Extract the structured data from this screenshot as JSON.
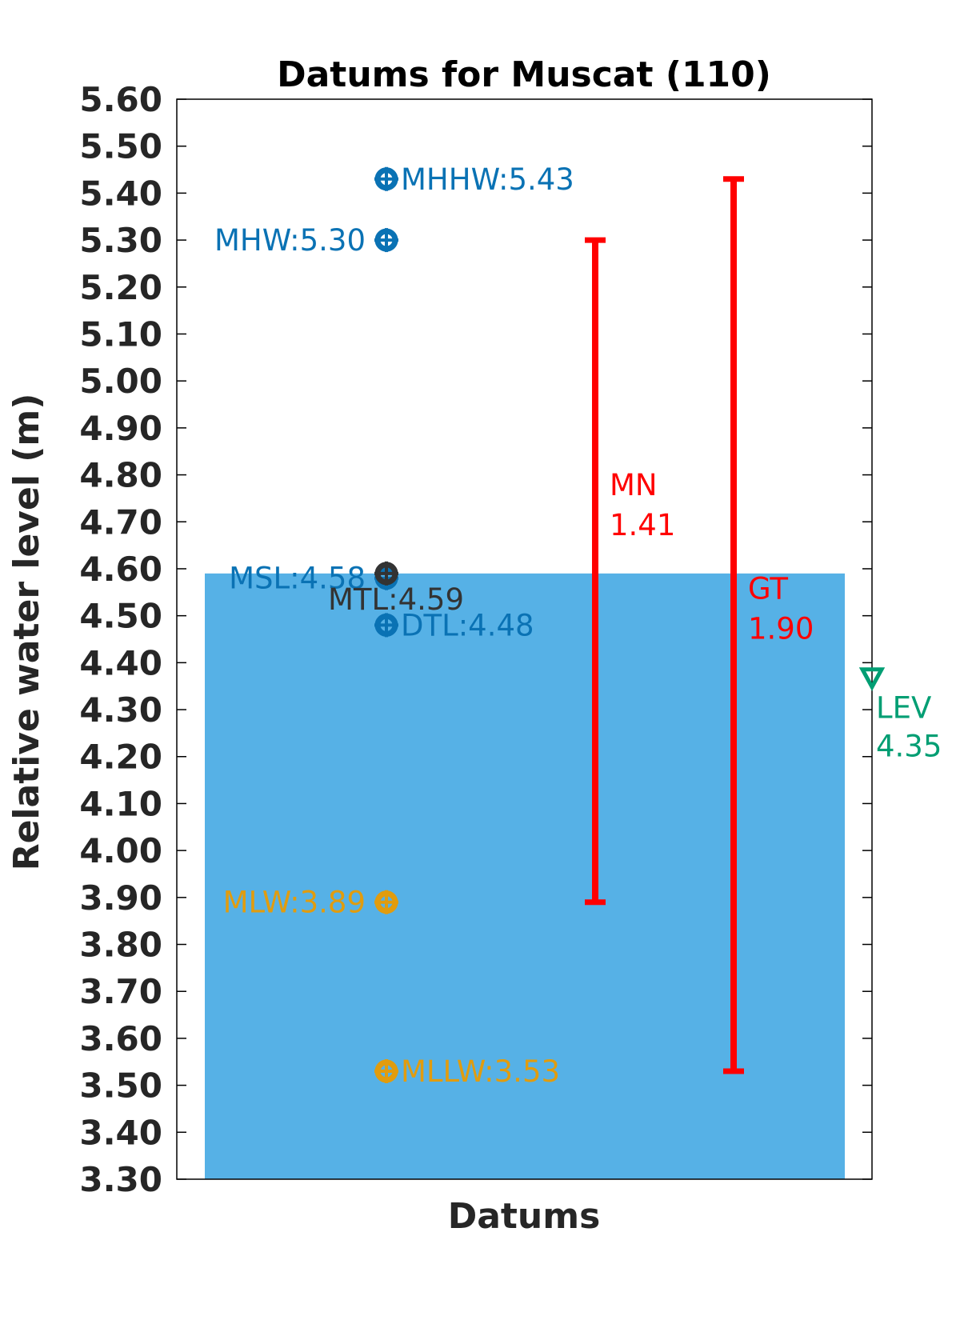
{
  "chart_data": {
    "type": "scatter",
    "title": "Datums for Muscat (110)",
    "xlabel": "Datums",
    "ylabel": "Relative water level (m)",
    "ylim": [
      3.3,
      5.6
    ],
    "yticks": [
      "3.30",
      "3.40",
      "3.50",
      "3.60",
      "3.70",
      "3.80",
      "3.90",
      "4.00",
      "4.10",
      "4.20",
      "4.30",
      "4.40",
      "4.50",
      "4.60",
      "4.70",
      "4.80",
      "4.90",
      "5.00",
      "5.10",
      "5.20",
      "5.30",
      "5.40",
      "5.50",
      "5.60"
    ],
    "grid": false,
    "background_bar": {
      "top": 4.59,
      "color": "#56b1e6"
    },
    "datums": [
      {
        "name": "MHHW",
        "value": 5.43,
        "label": "MHHW:5.43",
        "color": "#0a72b4",
        "label_side": "right"
      },
      {
        "name": "MHW",
        "value": 5.3,
        "label": "MHW:5.30",
        "color": "#0a72b4",
        "label_side": "left"
      },
      {
        "name": "MSL",
        "value": 4.58,
        "label": "MSL:4.58",
        "color": "#0a72b4",
        "label_side": "left"
      },
      {
        "name": "MTL",
        "value": 4.59,
        "label": "MTL:4.59",
        "color": "#333333",
        "label_side": "below"
      },
      {
        "name": "DTL",
        "value": 4.48,
        "label": "DTL:4.48",
        "color": "#0a72b4",
        "label_side": "right"
      },
      {
        "name": "MLW",
        "value": 3.89,
        "label": "MLW:3.89",
        "color": "#e19c0e",
        "label_side": "left"
      },
      {
        "name": "MLLW",
        "value": 3.53,
        "label": "MLLW:3.53",
        "color": "#e19c0e",
        "label_side": "right"
      }
    ],
    "ranges": [
      {
        "name": "MN",
        "low": 3.89,
        "high": 5.3,
        "label_line1": "MN",
        "label_line2": "1.41",
        "color": "#ff0000"
      },
      {
        "name": "GT",
        "low": 3.53,
        "high": 5.43,
        "label_line1": "GT",
        "label_line2": "1.90",
        "color": "#ff0000"
      }
    ],
    "lev": {
      "value": 4.35,
      "label_line1": "LEV",
      "label_line2": "4.35",
      "color": "#009e73"
    }
  }
}
